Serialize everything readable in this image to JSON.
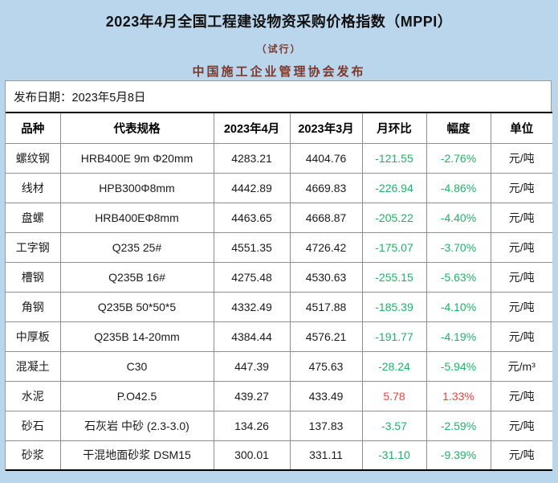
{
  "page": {
    "title": "2023年4月全国工程建设物资采购价格指数（MPPI）",
    "subtitle": "（试行）",
    "publisher": "中国施工企业管理协会发布",
    "release_date": "发布日期：2023年5月8日"
  },
  "colors": {
    "frame_blue": "#BAD6EC",
    "subtitle_maroon": "#7B382B",
    "negative_green": "#1EB269",
    "positive_red": "#FA3C3C",
    "grid_gray": "#8F8F8F",
    "table_outer_black": "#000000"
  },
  "table": {
    "columns": [
      "品种",
      "代表规格",
      "2023年4月",
      "2023年3月",
      "月环比",
      "幅度",
      "单位"
    ],
    "rows": [
      {
        "name": "螺纹钢",
        "spec": "HRB400E 9m Φ20mm",
        "apr": "4283.21",
        "mar": "4404.76",
        "mom": "-121.55",
        "pct": "-2.76%",
        "unit": "元/吨",
        "trend": "down"
      },
      {
        "name": "线材",
        "spec": "HPB300Φ8mm",
        "apr": "4442.89",
        "mar": "4669.83",
        "mom": "-226.94",
        "pct": "-4.86%",
        "unit": "元/吨",
        "trend": "down"
      },
      {
        "name": "盘螺",
        "spec": "HRB400EΦ8mm",
        "apr": "4463.65",
        "mar": "4668.87",
        "mom": "-205.22",
        "pct": "-4.40%",
        "unit": "元/吨",
        "trend": "down"
      },
      {
        "name": "工字钢",
        "spec": "Q235 25#",
        "apr": "4551.35",
        "mar": "4726.42",
        "mom": "-175.07",
        "pct": "-3.70%",
        "unit": "元/吨",
        "trend": "down"
      },
      {
        "name": "槽钢",
        "spec": "Q235B 16#",
        "apr": "4275.48",
        "mar": "4530.63",
        "mom": "-255.15",
        "pct": "-5.63%",
        "unit": "元/吨",
        "trend": "down"
      },
      {
        "name": "角钢",
        "spec": "Q235B 50*50*5",
        "apr": "4332.49",
        "mar": "4517.88",
        "mom": "-185.39",
        "pct": "-4.10%",
        "unit": "元/吨",
        "trend": "down"
      },
      {
        "name": "中厚板",
        "spec": "Q235B 14-20mm",
        "apr": "4384.44",
        "mar": "4576.21",
        "mom": "-191.77",
        "pct": "-4.19%",
        "unit": "元/吨",
        "trend": "down"
      },
      {
        "name": "混凝土",
        "spec": "C30",
        "apr": "447.39",
        "mar": "475.63",
        "mom": "-28.24",
        "pct": "-5.94%",
        "unit": "元/m³",
        "trend": "down"
      },
      {
        "name": "水泥",
        "spec": "P.O42.5",
        "apr": "439.27",
        "mar": "433.49",
        "mom": "5.78",
        "pct": "1.33%",
        "unit": "元/吨",
        "trend": "up"
      },
      {
        "name": "砂石",
        "spec": "石灰岩 中砂 (2.3-3.0)",
        "apr": "134.26",
        "mar": "137.83",
        "mom": "-3.57",
        "pct": "-2.59%",
        "unit": "元/吨",
        "trend": "down"
      },
      {
        "name": "砂浆",
        "spec": "干混地面砂浆 DSM15",
        "apr": "300.01",
        "mar": "331.11",
        "mom": "-31.10",
        "pct": "-9.39%",
        "unit": "元/吨",
        "trend": "down"
      }
    ]
  }
}
